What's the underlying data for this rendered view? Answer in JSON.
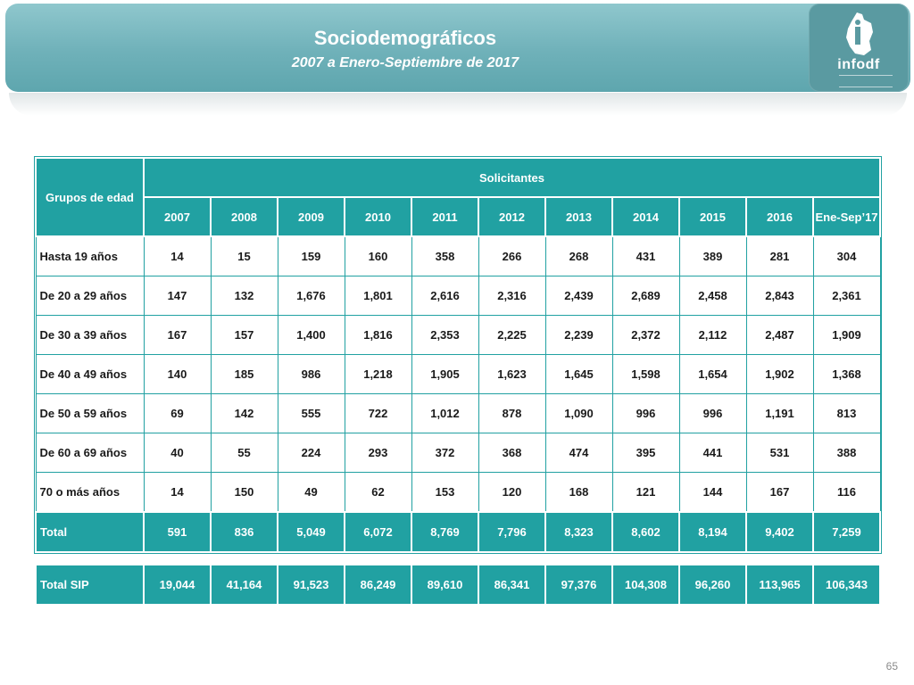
{
  "header": {
    "title": "Sociodemográficos",
    "subtitle": "2007 a Enero-Septiembre de 2017",
    "logo_text": "infodf"
  },
  "table": {
    "row_header_label": "Grupos de edad",
    "group_header": "Solicitantes",
    "columns": [
      "2007",
      "2008",
      "2009",
      "2010",
      "2011",
      "2012",
      "2013",
      "2014",
      "2015",
      "2016",
      "Ene-Sep’17"
    ],
    "rows": [
      {
        "label": "Hasta 19 años",
        "values": [
          "14",
          "15",
          "159",
          "160",
          "358",
          "266",
          "268",
          "431",
          "389",
          "281",
          "304"
        ]
      },
      {
        "label": "De 20 a 29 años",
        "values": [
          "147",
          "132",
          "1,676",
          "1,801",
          "2,616",
          "2,316",
          "2,439",
          "2,689",
          "2,458",
          "2,843",
          "2,361"
        ]
      },
      {
        "label": "De 30 a 39 años",
        "values": [
          "167",
          "157",
          "1,400",
          "1,816",
          "2,353",
          "2,225",
          "2,239",
          "2,372",
          "2,112",
          "2,487",
          "1,909"
        ]
      },
      {
        "label": "De 40 a 49 años",
        "values": [
          "140",
          "185",
          "986",
          "1,218",
          "1,905",
          "1,623",
          "1,645",
          "1,598",
          "1,654",
          "1,902",
          "1,368"
        ]
      },
      {
        "label": "De 50 a 59 años",
        "values": [
          "69",
          "142",
          "555",
          "722",
          "1,012",
          "878",
          "1,090",
          "996",
          "996",
          "1,191",
          "813"
        ]
      },
      {
        "label": "De 60 a 69 años",
        "values": [
          "40",
          "55",
          "224",
          "293",
          "372",
          "368",
          "474",
          "395",
          "441",
          "531",
          "388"
        ]
      },
      {
        "label": "70 o más años",
        "values": [
          "14",
          "150",
          "49",
          "62",
          "153",
          "120",
          "168",
          "121",
          "144",
          "167",
          "116"
        ]
      }
    ],
    "total": {
      "label": "Total",
      "values": [
        "591",
        "836",
        "5,049",
        "6,072",
        "8,769",
        "7,796",
        "8,323",
        "8,602",
        "8,194",
        "9,402",
        "7,259"
      ]
    },
    "total_sip": {
      "label": "Total SIP",
      "values": [
        "19,044",
        "41,164",
        "91,523",
        "86,249",
        "89,610",
        "86,341",
        "97,376",
        "104,308",
        "96,260",
        "113,965",
        "106,343"
      ]
    }
  },
  "footer": {
    "page_number": "65"
  },
  "colors": {
    "teal": "#21a1a2",
    "banner": "#6fb1b9",
    "text": "#1a1a1a"
  }
}
